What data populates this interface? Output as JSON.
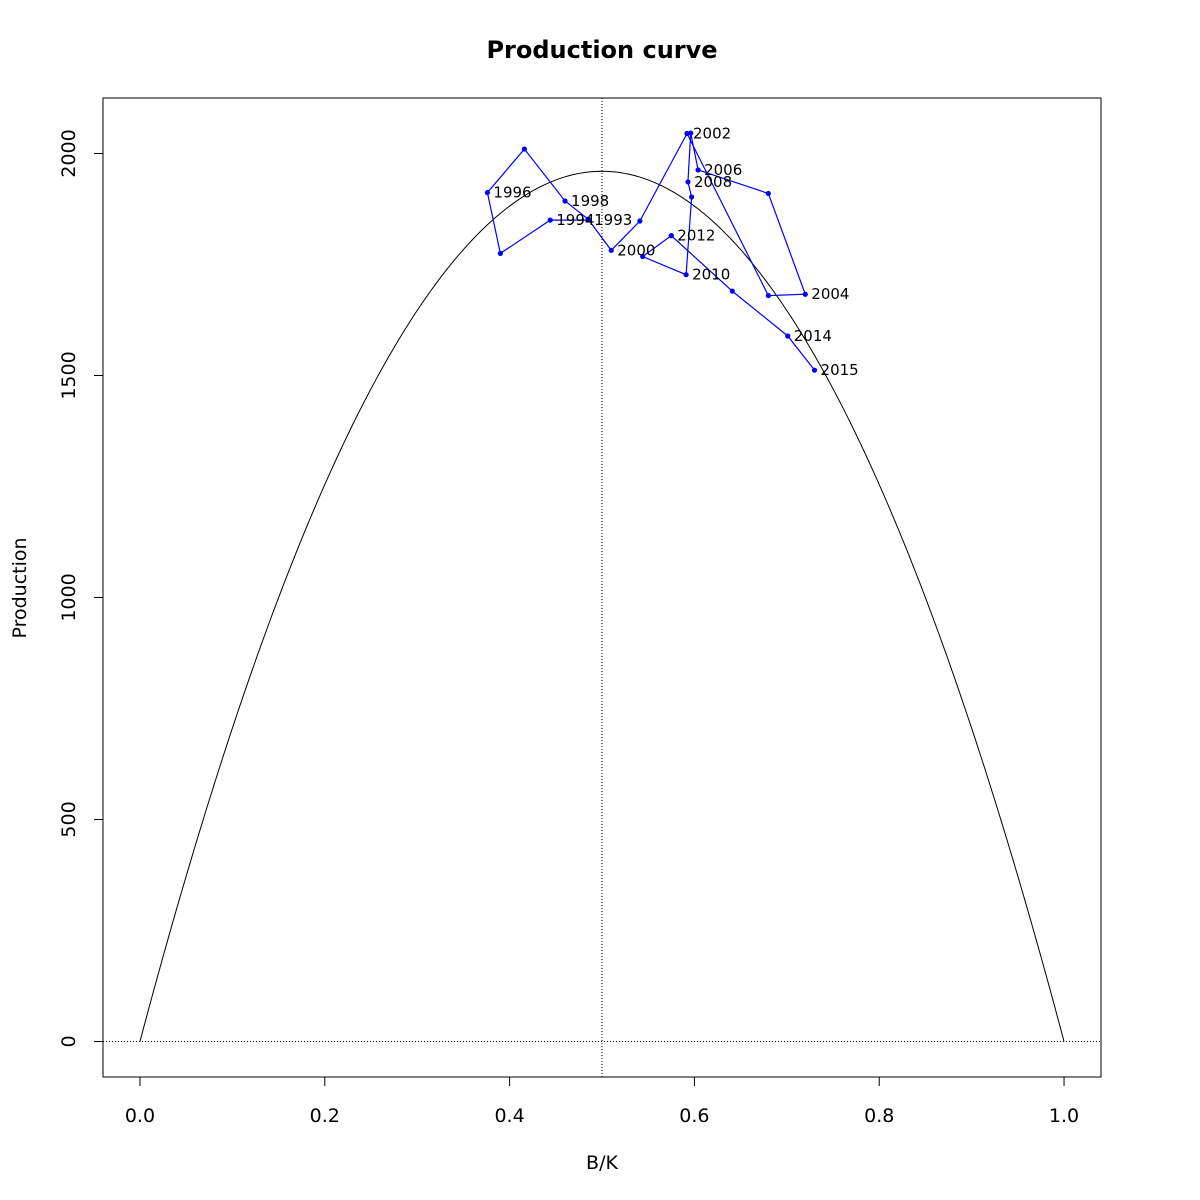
{
  "chart_data": {
    "type": "line",
    "title": "Production curve",
    "xlabel": "B/K",
    "ylabel": "Production",
    "xlim": [
      -0.04,
      1.04
    ],
    "ylim": [
      -80,
      2125
    ],
    "x_ticks": [
      "0.0",
      "0.2",
      "0.4",
      "0.6",
      "0.8",
      "1.0"
    ],
    "y_ticks": [
      "0",
      "500",
      "1000",
      "1500",
      "2000"
    ],
    "grid": false,
    "reference_lines": {
      "vertical_x": 0.5,
      "horizontal_y": 0
    },
    "curve": {
      "description": "parabolic surplus production curve",
      "msy": 1960,
      "bmsy_over_k": 0.5,
      "color": "#000000"
    },
    "series": [
      {
        "color": "#0000ff",
        "points": [
          {
            "year": "1993",
            "x": 0.485,
            "y": 1850
          },
          {
            "year": "1994",
            "x": 0.444,
            "y": 1850
          },
          {
            "year": "1995",
            "x": 0.39,
            "y": 1775
          },
          {
            "year": "1996",
            "x": 0.376,
            "y": 1912
          },
          {
            "year": "1997",
            "x": 0.416,
            "y": 2010
          },
          {
            "year": "1998",
            "x": 0.46,
            "y": 1893
          },
          {
            "year": "1999",
            "x": 0.485,
            "y": 1852
          },
          {
            "year": "2000",
            "x": 0.51,
            "y": 1782
          },
          {
            "year": "2001",
            "x": 0.541,
            "y": 1848
          },
          {
            "year": "2002",
            "x": 0.592,
            "y": 2045
          },
          {
            "year": "2003",
            "x": 0.68,
            "y": 1680
          },
          {
            "year": "2004",
            "x": 0.72,
            "y": 1683
          },
          {
            "year": "2005",
            "x": 0.68,
            "y": 1910
          },
          {
            "year": "2006",
            "x": 0.604,
            "y": 1963
          },
          {
            "year": "2007",
            "x": 0.596,
            "y": 2046
          },
          {
            "year": "2008",
            "x": 0.593,
            "y": 1936
          },
          {
            "year": "2009",
            "x": 0.597,
            "y": 1902
          },
          {
            "year": "2010",
            "x": 0.591,
            "y": 1727
          },
          {
            "year": "2011",
            "x": 0.544,
            "y": 1768
          },
          {
            "year": "2012",
            "x": 0.575,
            "y": 1815
          },
          {
            "year": "2013",
            "x": 0.641,
            "y": 1690
          },
          {
            "year": "2014",
            "x": 0.701,
            "y": 1589
          },
          {
            "year": "2015",
            "x": 0.73,
            "y": 1512
          }
        ],
        "labeled_years": [
          "1993",
          "1994",
          "1996",
          "1998",
          "2000",
          "2002",
          "2004",
          "2006",
          "2008",
          "2010",
          "2012",
          "2014",
          "2015"
        ]
      }
    ]
  }
}
